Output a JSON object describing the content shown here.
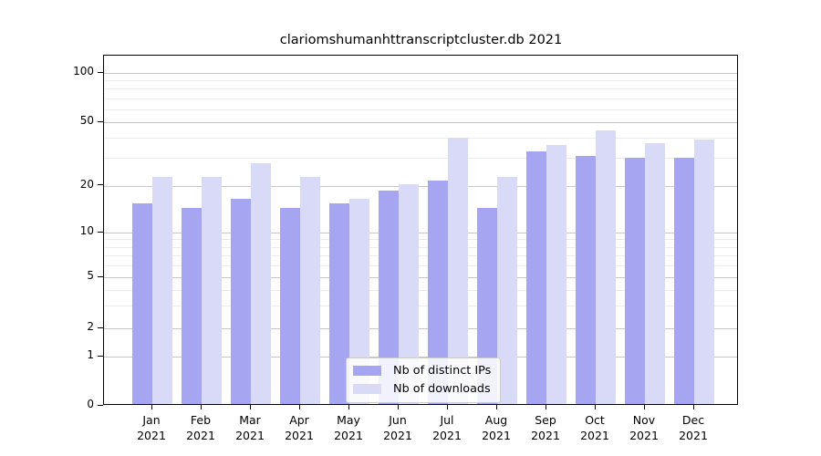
{
  "chart_data": {
    "type": "bar",
    "title": "clariomshumanhttranscriptcluster.db 2021",
    "categories": [
      "Jan",
      "Feb",
      "Mar",
      "Apr",
      "May",
      "Jun",
      "Jul",
      "Aug",
      "Sep",
      "Oct",
      "Nov",
      "Dec"
    ],
    "x_tick_year": "2021",
    "series": [
      {
        "name": "Nb of distinct IPs",
        "color": "#a5a5f1",
        "values": [
          15,
          14,
          16,
          14,
          15,
          18,
          21,
          14,
          32,
          30,
          29,
          29
        ]
      },
      {
        "name": "Nb of downloads",
        "color": "#d9d9f8",
        "values": [
          22,
          22,
          27,
          22,
          16,
          20,
          39,
          22,
          35,
          43,
          36,
          38
        ]
      }
    ],
    "xlabel": "",
    "ylabel": "",
    "y_axis": {
      "scale": "symlog",
      "ticks": [
        0,
        1,
        2,
        5,
        10,
        20,
        50,
        100
      ],
      "minor_gridlines": [
        3,
        4,
        6,
        7,
        8,
        9,
        30,
        40,
        60,
        70,
        80,
        90
      ],
      "range": [
        0,
        115
      ]
    },
    "grid": true,
    "legend_position": "lower center"
  }
}
